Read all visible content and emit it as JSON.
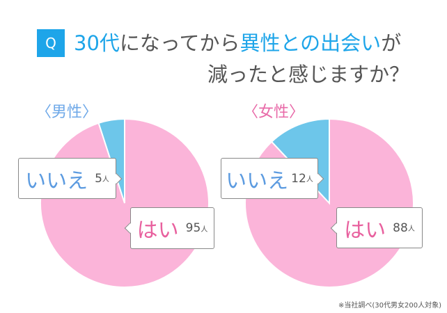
{
  "title": {
    "q_badge": "Q",
    "line1_parts": [
      {
        "text": "30代",
        "highlight": true
      },
      {
        "text": "になってから",
        "highlight": false
      },
      {
        "text": "異性との出会い",
        "highlight": true
      },
      {
        "text": "が",
        "highlight": false
      }
    ],
    "line2": "減ったと感じますか？"
  },
  "colors": {
    "accent_blue": "#1ea5e9",
    "pie_pink": "#fbb4d9",
    "pie_blue": "#6dc6ea",
    "male_label": "#6ea8e8",
    "female_label": "#e86aa8",
    "answer_yes": "#e8609e",
    "answer_no": "#5c9be0"
  },
  "groups": [
    {
      "label": "〈男性〉",
      "yes": {
        "label": "はい",
        "count": "95",
        "unit": "人"
      },
      "no": {
        "label": "いいえ",
        "count": "5",
        "unit": "人"
      }
    },
    {
      "label": "〈女性〉",
      "yes": {
        "label": "はい",
        "count": "88",
        "unit": "人"
      },
      "no": {
        "label": "いいえ",
        "count": "12",
        "unit": "人"
      }
    }
  ],
  "footnote": "※当社調べ(30代男女200人対象)",
  "chart_data": [
    {
      "type": "pie",
      "title": "〈男性〉",
      "categories": [
        "はい",
        "いいえ"
      ],
      "values": [
        95,
        5
      ],
      "unit": "人",
      "colors": [
        "#fbb4d9",
        "#6dc6ea"
      ]
    },
    {
      "type": "pie",
      "title": "〈女性〉",
      "categories": [
        "はい",
        "いいえ"
      ],
      "values": [
        88,
        12
      ],
      "unit": "人",
      "colors": [
        "#fbb4d9",
        "#6dc6ea"
      ]
    }
  ]
}
